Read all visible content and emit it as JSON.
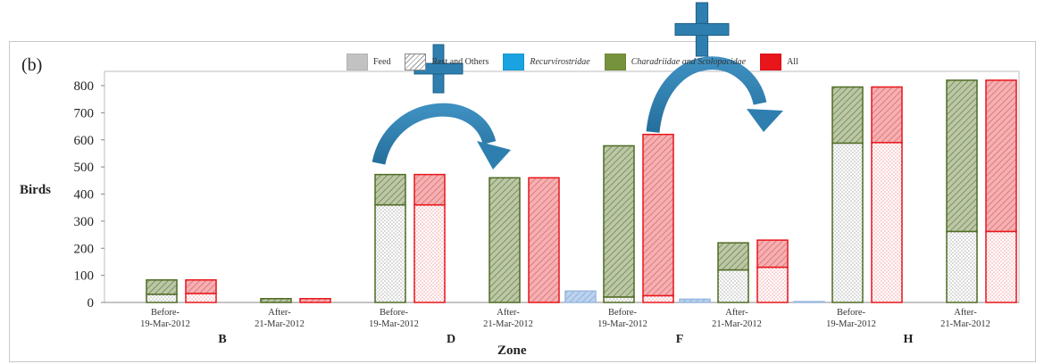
{
  "panel_label": "(b)",
  "legend": {
    "items": [
      {
        "label": "Feed",
        "color": "#c2c2c2",
        "pattern": "solid",
        "italic": false
      },
      {
        "label": "Rest and Others",
        "color": "#9a9a9a",
        "pattern": "hatch",
        "italic": false
      },
      {
        "label": "Recurvirostridae",
        "color": "#1aa3e0",
        "pattern": "solid",
        "italic": true
      },
      {
        "label": "Charadriidae and Scolopacidae",
        "color": "#76923c",
        "pattern": "solid",
        "italic": true
      },
      {
        "label": "All",
        "color": "#e8151b",
        "pattern": "solid",
        "italic": false
      }
    ]
  },
  "chart_data": {
    "type": "bar",
    "title": "",
    "xlabel": "Zone",
    "ylabel": "Birds",
    "ylim": [
      0,
      800
    ],
    "yticks": [
      "0",
      "100",
      "200",
      "300",
      "400",
      "500",
      "600",
      "700",
      "800"
    ],
    "grid": false,
    "legend_position": "top",
    "zones": [
      "B",
      "D",
      "F",
      "H"
    ],
    "periods": [
      {
        "line1": "Before-",
        "line2": "19-Mar-2012"
      },
      {
        "line1": "After-",
        "line2": "21-Mar-2012"
      }
    ],
    "categories": [
      "B Before",
      "B After",
      "D Before",
      "D After",
      "F Before",
      "F After",
      "H Before",
      "H After"
    ],
    "series": [
      {
        "name": "Recurvirostridae",
        "color": "#7faede",
        "feed": [
          0,
          0,
          0,
          0,
          0,
          0,
          0,
          0
        ],
        "rest": [
          0,
          0,
          0,
          0,
          42,
          12,
          3,
          0
        ]
      },
      {
        "name": "Charadriidae and Scolopacidae",
        "color": "#76923c",
        "feed": [
          30,
          0,
          360,
          0,
          20,
          120,
          588,
          262
        ],
        "rest": [
          53,
          14,
          112,
          460,
          558,
          100,
          207,
          558
        ]
      },
      {
        "name": "All",
        "color": "#e8151b",
        "feed": [
          33,
          0,
          360,
          0,
          25,
          130,
          590,
          262
        ],
        "rest": [
          50,
          14,
          112,
          460,
          595,
          100,
          205,
          558
        ]
      }
    ]
  },
  "annotations": [
    {
      "name": "plus-icon-1",
      "symbol": "+",
      "color": "#2e7fb0"
    },
    {
      "name": "curved-arrow-1",
      "color": "#2e7fb0"
    },
    {
      "name": "plus-icon-2",
      "symbol": "+",
      "color": "#2e7fb0"
    },
    {
      "name": "curved-arrow-2",
      "color": "#2e7fb0"
    }
  ]
}
